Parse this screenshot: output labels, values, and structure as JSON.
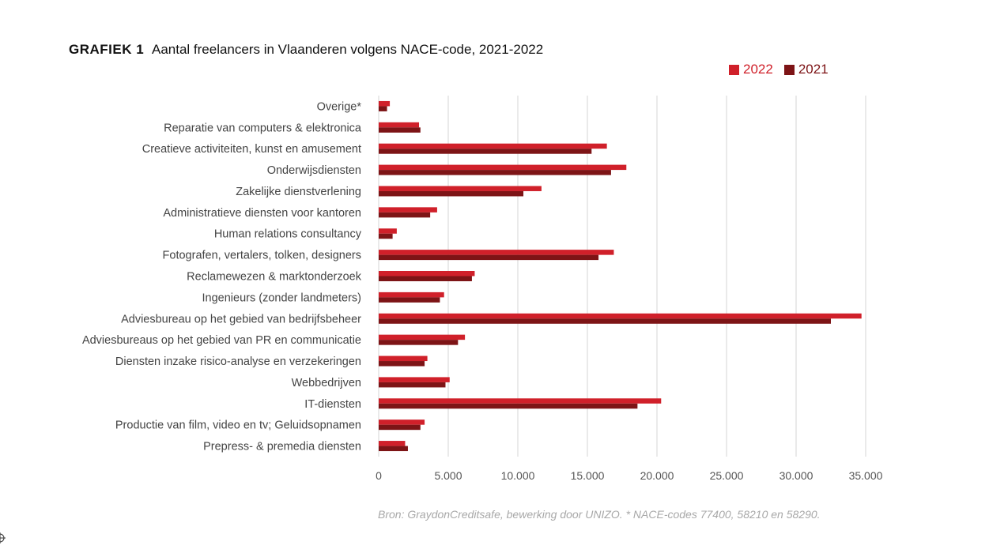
{
  "title": {
    "label": "GRAFIEK 1",
    "text": "Aantal freelancers in Vlaanderen volgens NACE-code, 2021-2022"
  },
  "colors": {
    "2022": "#d0202a",
    "2021": "#7d1416",
    "grid": "#d4d4d4"
  },
  "chart_data": {
    "type": "bar",
    "orientation": "horizontal",
    "categories": [
      "Overige*",
      "Reparatie van computers & elektronica",
      "Creatieve activiteiten, kunst en amusement",
      "Onderwijsdiensten",
      "Zakelijke dienstverlening",
      "Administratieve diensten voor kantoren",
      "Human relations consultancy",
      "Fotografen, vertalers, tolken, designers",
      "Reclamewezen & marktonderzoek",
      "Ingenieurs (zonder landmeters)",
      "Adviesbureau op het gebied van bedrijfsbeheer",
      "Adviesbureaus op het gebied van PR en communicatie",
      "Diensten inzake risico-analyse en verzekeringen",
      "Webbedrijven",
      "IT-diensten",
      "Productie van film, video en tv; Geluidsopnamen",
      "Prepress- & premedia diensten"
    ],
    "series": [
      {
        "name": "2022",
        "values": [
          800,
          2900,
          16400,
          17800,
          11700,
          4200,
          1300,
          16900,
          6900,
          4700,
          34700,
          6200,
          3500,
          5100,
          20300,
          3300,
          1900
        ]
      },
      {
        "name": "2021",
        "values": [
          600,
          3000,
          15300,
          16700,
          10400,
          3700,
          1000,
          15800,
          6700,
          4400,
          32500,
          5700,
          3300,
          4800,
          18600,
          3000,
          2100
        ]
      }
    ],
    "xlim": [
      0,
      35000
    ],
    "xticks": [
      0,
      5000,
      10000,
      15000,
      20000,
      25000,
      30000,
      35000
    ],
    "xtick_labels": [
      "0",
      "5.000",
      "10.000",
      "15.000",
      "20.000",
      "25.000",
      "30.000",
      "35.000"
    ],
    "legend": [
      "2022",
      "2021"
    ],
    "legend_position": "top-right",
    "grid": "vertical"
  },
  "source": "Bron: GraydonCreditsafe, bewerking door UNIZO. * NACE-codes 77400, 58210 en 58290."
}
